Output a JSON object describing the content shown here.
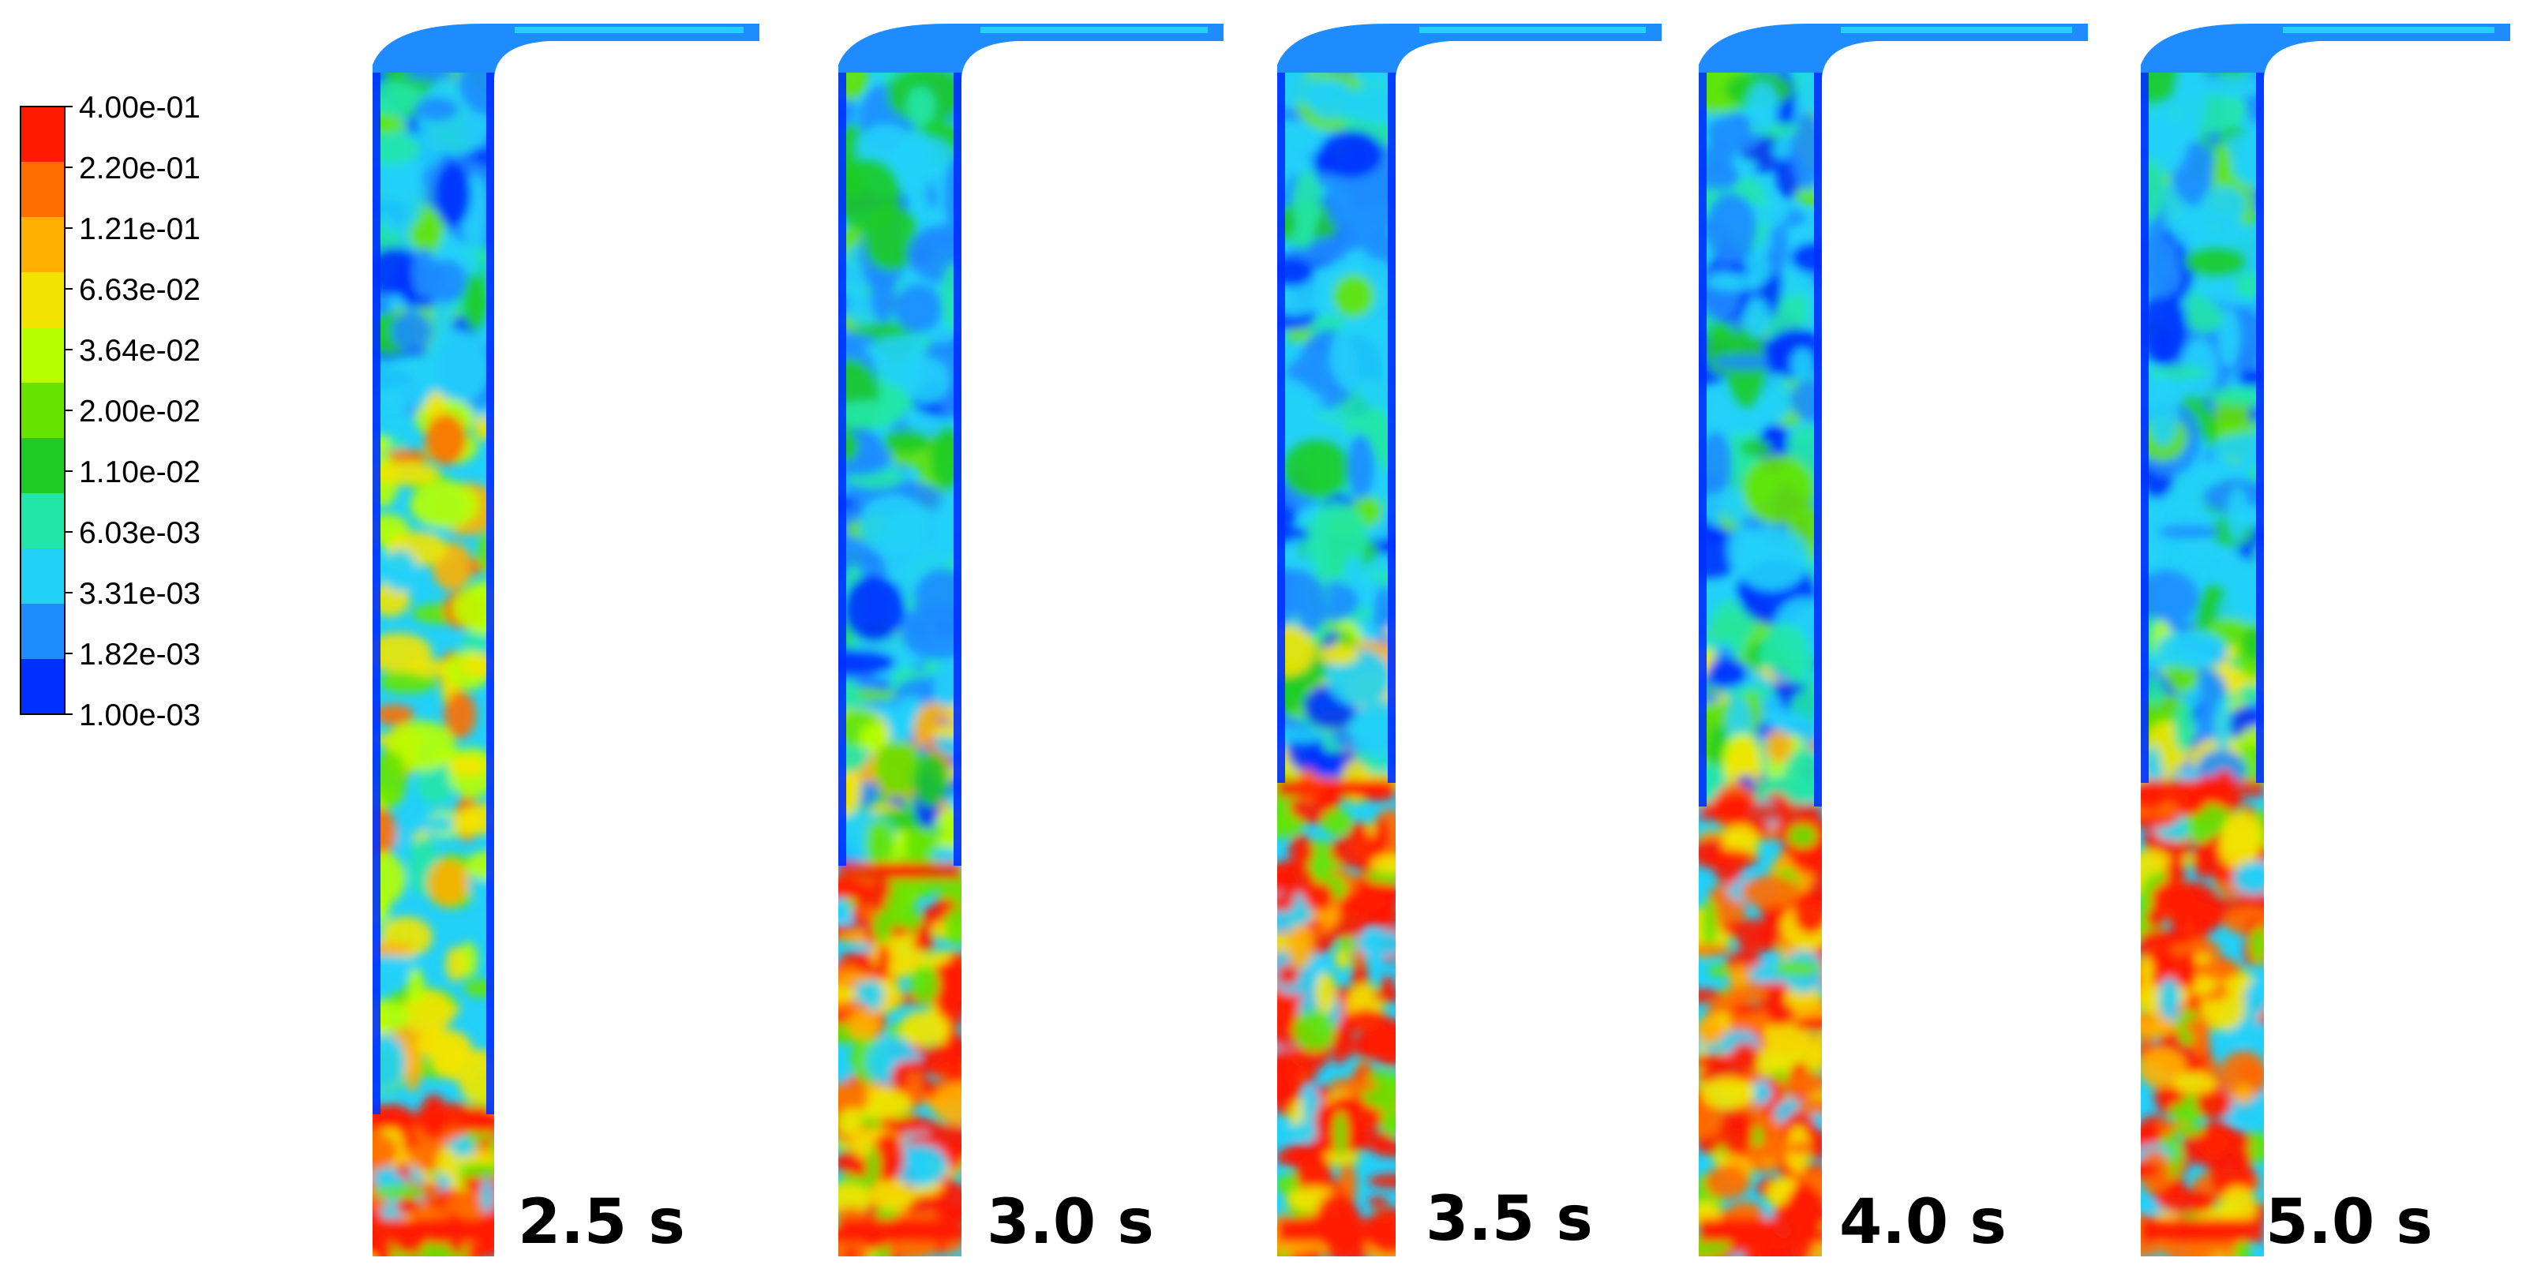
{
  "colorbar": {
    "ticks": [
      "4.00e-01",
      "2.20e-01",
      "1.21e-01",
      "6.63e-02",
      "3.64e-02",
      "2.00e-02",
      "1.10e-02",
      "6.03e-03",
      "3.31e-03",
      "1.82e-03",
      "1.00e-03"
    ],
    "colors": [
      "#ff1a00",
      "#ff6e00",
      "#ffb000",
      "#f2e400",
      "#b8ff00",
      "#66e400",
      "#1ecc26",
      "#22e6a8",
      "#22d0f8",
      "#1e8cff",
      "#0030ff"
    ]
  },
  "snapshots": [
    {
      "time_label": "2.5 s",
      "dense_bed_fraction": 0.12
    },
    {
      "time_label": "3.0 s",
      "dense_bed_fraction": 0.33
    },
    {
      "time_label": "3.5 s",
      "dense_bed_fraction": 0.4
    },
    {
      "time_label": "4.0 s",
      "dense_bed_fraction": 0.38
    },
    {
      "time_label": "5.0 s",
      "dense_bed_fraction": 0.4
    }
  ]
}
